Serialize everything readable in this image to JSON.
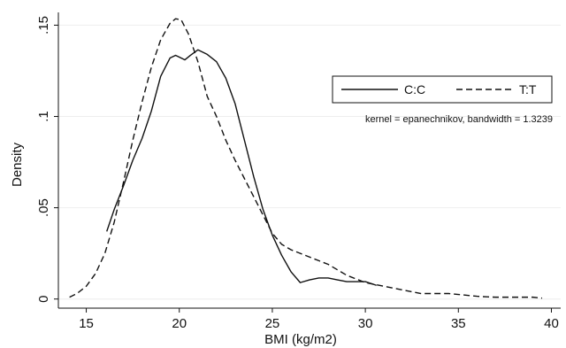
{
  "chart_data": {
    "type": "line",
    "title": "",
    "xlabel": "BMI (kg/m2)",
    "ylabel": "Density",
    "xlim": [
      13.5,
      40.5
    ],
    "ylim": [
      -0.005,
      0.157
    ],
    "x_ticks": [
      {
        "value": 15,
        "label": "15"
      },
      {
        "value": 20,
        "label": "20"
      },
      {
        "value": 25,
        "label": "25"
      },
      {
        "value": 30,
        "label": "30"
      },
      {
        "value": 35,
        "label": "35"
      },
      {
        "value": 40,
        "label": "40"
      }
    ],
    "y_ticks": [
      {
        "value": 0,
        "label": "0"
      },
      {
        "value": 0.05,
        "label": ".05"
      },
      {
        "value": 0.1,
        "label": ".1"
      },
      {
        "value": 0.15,
        "label": ".15"
      }
    ],
    "grid": {
      "horizontal": true,
      "vertical": false,
      "color": "#eeeeee"
    },
    "legend_position": "top-right",
    "note": "kernel = epanechnikov, bandwidth = 1.3239",
    "series": [
      {
        "name": "C:C",
        "style": "solid",
        "color": "#111111",
        "points": [
          [
            16.1,
            0.037
          ],
          [
            16.5,
            0.049
          ],
          [
            17.0,
            0.062
          ],
          [
            17.5,
            0.076
          ],
          [
            18.0,
            0.088
          ],
          [
            18.5,
            0.103
          ],
          [
            19.0,
            0.122
          ],
          [
            19.5,
            0.132
          ],
          [
            19.8,
            0.1335
          ],
          [
            20.0,
            0.1325
          ],
          [
            20.3,
            0.131
          ],
          [
            20.6,
            0.1335
          ],
          [
            21.0,
            0.1365
          ],
          [
            21.5,
            0.134
          ],
          [
            22.0,
            0.13
          ],
          [
            22.5,
            0.121
          ],
          [
            23.0,
            0.107
          ],
          [
            23.5,
            0.087
          ],
          [
            24.0,
            0.067
          ],
          [
            24.5,
            0.049
          ],
          [
            25.0,
            0.035
          ],
          [
            25.5,
            0.024
          ],
          [
            26.0,
            0.015
          ],
          [
            26.5,
            0.009
          ],
          [
            27.0,
            0.0105
          ],
          [
            27.5,
            0.0115
          ],
          [
            28.0,
            0.0115
          ],
          [
            28.5,
            0.0105
          ],
          [
            29.0,
            0.0095
          ],
          [
            29.5,
            0.0095
          ],
          [
            30.0,
            0.0095
          ],
          [
            30.6,
            0.0075
          ]
        ]
      },
      {
        "name": "T:T",
        "style": "dashed",
        "color": "#111111",
        "points": [
          [
            14.1,
            0.001
          ],
          [
            14.5,
            0.003
          ],
          [
            15.0,
            0.007
          ],
          [
            15.5,
            0.014
          ],
          [
            16.0,
            0.025
          ],
          [
            16.5,
            0.042
          ],
          [
            17.0,
            0.064
          ],
          [
            17.5,
            0.087
          ],
          [
            18.0,
            0.108
          ],
          [
            18.5,
            0.127
          ],
          [
            19.0,
            0.142
          ],
          [
            19.5,
            0.151
          ],
          [
            19.8,
            0.1535
          ],
          [
            20.1,
            0.153
          ],
          [
            20.5,
            0.145
          ],
          [
            21.0,
            0.13
          ],
          [
            21.5,
            0.111
          ],
          [
            22.0,
            0.1
          ],
          [
            22.5,
            0.087
          ],
          [
            23.0,
            0.076
          ],
          [
            23.5,
            0.066
          ],
          [
            24.0,
            0.056
          ],
          [
            24.5,
            0.046
          ],
          [
            25.0,
            0.036
          ],
          [
            25.5,
            0.03
          ],
          [
            26.0,
            0.027
          ],
          [
            26.5,
            0.025
          ],
          [
            27.0,
            0.023
          ],
          [
            27.5,
            0.021
          ],
          [
            28.0,
            0.019
          ],
          [
            28.5,
            0.016
          ],
          [
            29.0,
            0.013
          ],
          [
            29.5,
            0.011
          ],
          [
            30.0,
            0.009
          ],
          [
            30.5,
            0.008
          ],
          [
            31.0,
            0.007
          ],
          [
            31.5,
            0.006
          ],
          [
            32.0,
            0.005
          ],
          [
            32.5,
            0.004
          ],
          [
            33.0,
            0.003
          ],
          [
            33.5,
            0.003
          ],
          [
            34.0,
            0.003
          ],
          [
            34.5,
            0.003
          ],
          [
            35.0,
            0.0025
          ],
          [
            35.5,
            0.002
          ],
          [
            36.0,
            0.0015
          ],
          [
            36.5,
            0.0012
          ],
          [
            37.0,
            0.001
          ],
          [
            37.5,
            0.001
          ],
          [
            38.0,
            0.001
          ],
          [
            38.5,
            0.001
          ],
          [
            39.0,
            0.001
          ],
          [
            39.5,
            0.0005
          ]
        ]
      }
    ]
  }
}
